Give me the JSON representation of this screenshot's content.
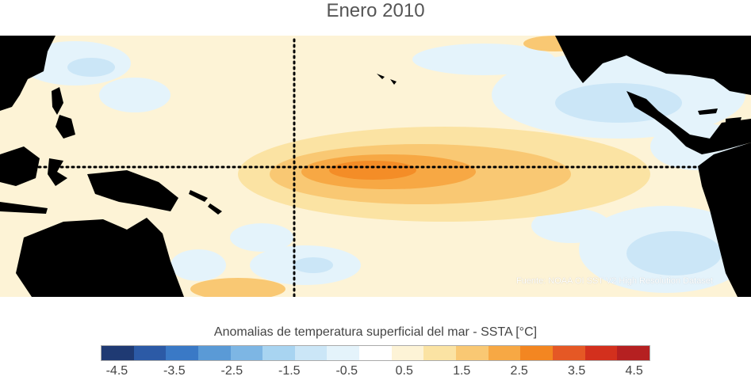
{
  "title": "Enero 2010",
  "source": "Fuente: NOAA OI SST V2 High Resolution Dataset",
  "colorbar": {
    "title": "Anomalias de temperatura superficial del mar - SSTA  [°C]",
    "colors": [
      "#1f3a73",
      "#2c5aa6",
      "#3a79c6",
      "#5a9ad6",
      "#7db6e4",
      "#a8d4f1",
      "#cbe6f7",
      "#e4f3fb",
      "#ffffff",
      "#fdf3d6",
      "#fbe3a3",
      "#f9c873",
      "#f7a844",
      "#f38621",
      "#e55825",
      "#d3301d",
      "#b52021"
    ],
    "tick_labels": [
      "-4.5",
      "-3.5",
      "-2.5",
      "-1.5",
      "-0.5",
      "0.5",
      "1.5",
      "2.5",
      "3.5",
      "4.5"
    ],
    "tick_values": [
      -4.5,
      -3.5,
      -2.5,
      -1.5,
      -0.5,
      0.5,
      1.5,
      2.5,
      3.5,
      4.5
    ],
    "range": [
      -4.5,
      4.5
    ]
  },
  "map": {
    "ocean_base_color": "#fdf3d6",
    "land_color": "#000000",
    "reference_line_color": "#000000",
    "reference_line_style": "dotted",
    "region": "Tropical Pacific Ocean"
  }
}
